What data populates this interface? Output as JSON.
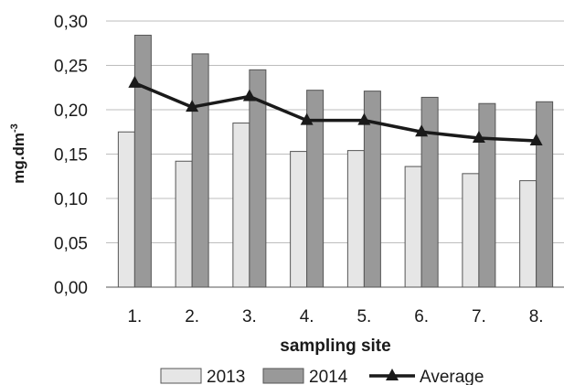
{
  "chart_data": {
    "type": "bar",
    "categories": [
      "1.",
      "2.",
      "3.",
      "4.",
      "5.",
      "6.",
      "7.",
      "8."
    ],
    "series": [
      {
        "name": "2013",
        "type": "bar",
        "color": "#e6e6e6",
        "values": [
          0.175,
          0.142,
          0.185,
          0.153,
          0.154,
          0.136,
          0.128,
          0.12
        ]
      },
      {
        "name": "2014",
        "type": "bar",
        "color": "#999999",
        "values": [
          0.284,
          0.263,
          0.245,
          0.222,
          0.221,
          0.214,
          0.207,
          0.209
        ]
      },
      {
        "name": "Average",
        "type": "line",
        "marker": "triangle",
        "color": "#1a1a1a",
        "values": [
          0.23,
          0.203,
          0.215,
          0.188,
          0.188,
          0.175,
          0.168,
          0.165
        ]
      }
    ],
    "xlabel": "sampling site",
    "ylabel": "mg.dm",
    "ylabel_superscript": "-3",
    "ylim": [
      0,
      0.3
    ],
    "yticks": [
      "0,00",
      "0,05",
      "0,10",
      "0,15",
      "0,20",
      "0,25",
      "0,30"
    ],
    "grid": "horizontal",
    "legend_position": "bottom"
  }
}
